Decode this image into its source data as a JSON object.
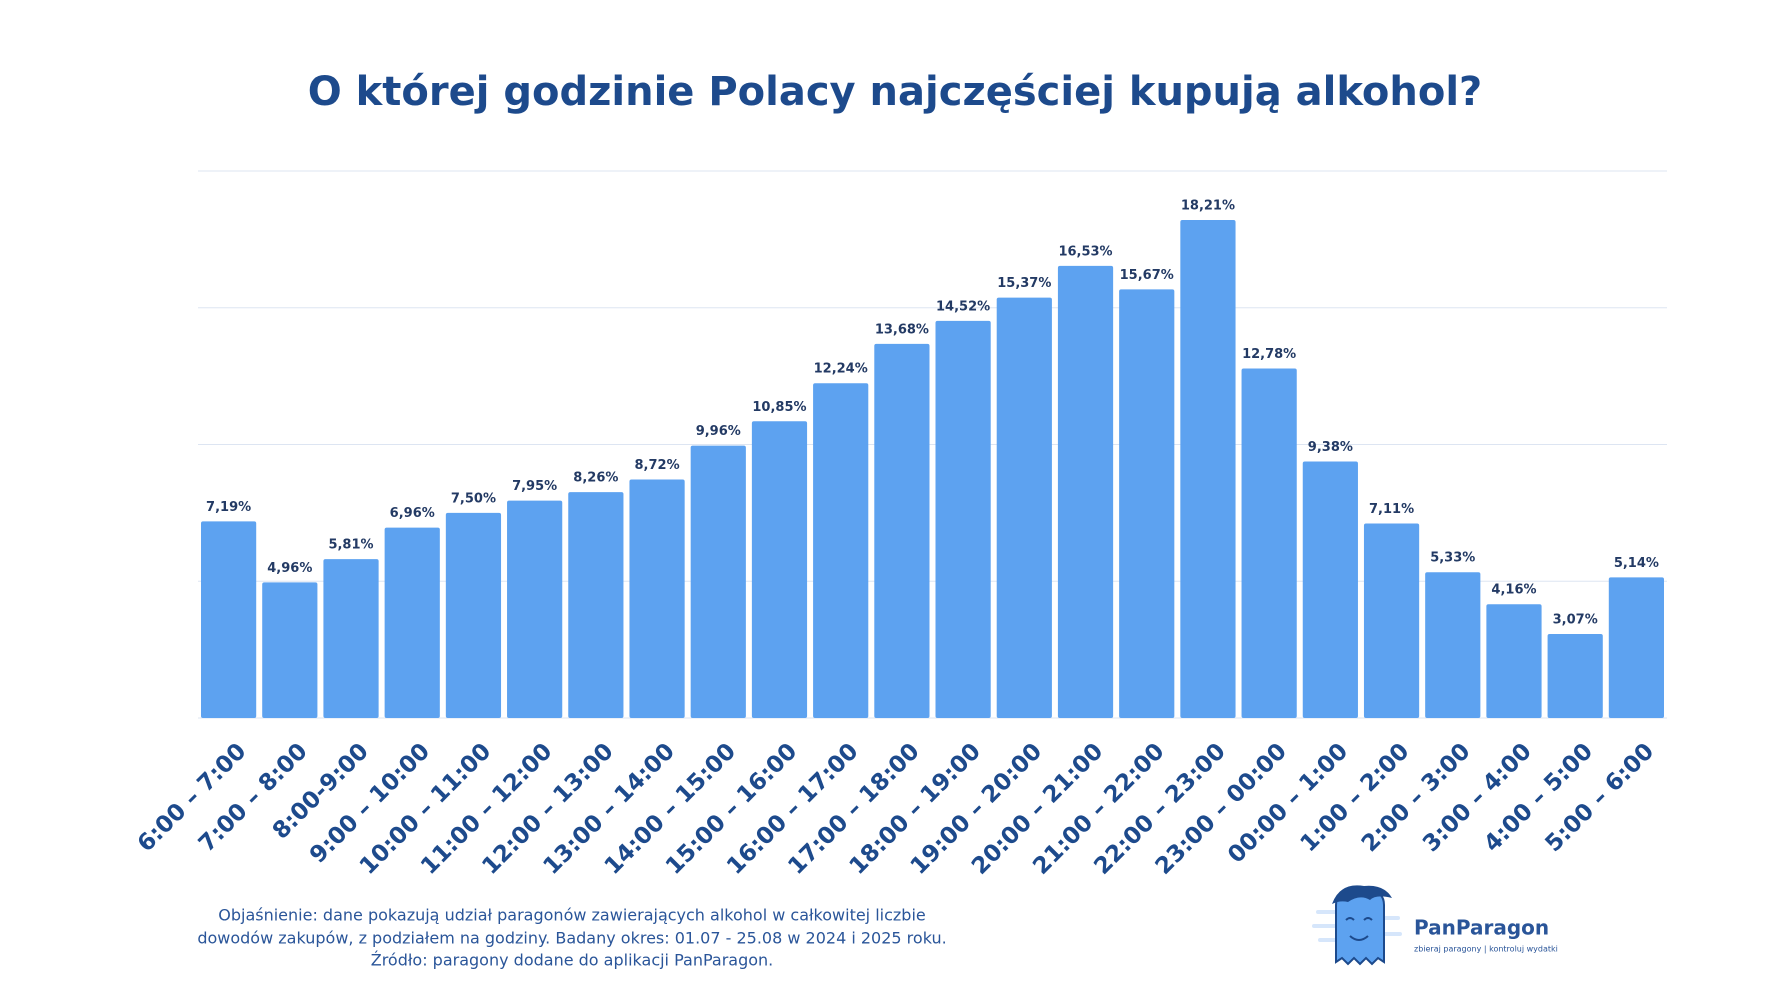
{
  "chart_data": {
    "type": "bar",
    "title": "O której godzinie Polacy najczęściej kupują alkohol?",
    "categories": [
      "6:00 – 7:00",
      "7:00 – 8:00",
      "8:00-9:00",
      "9:00 – 10:00",
      "10:00 – 11:00",
      "11:00 – 12:00",
      "12:00 – 13:00",
      "13:00 – 14:00",
      "14:00 – 15:00",
      "15:00 – 16:00",
      "16:00 – 17:00",
      "17:00 – 18:00",
      "18:00 – 19:00",
      "19:00 – 20:00",
      "20:00 – 21:00",
      "21:00 – 22:00",
      "22:00 – 23:00",
      "23:00 – 00:00",
      "00:00 – 1:00",
      "1:00 – 2:00",
      "2:00 – 3:00",
      "3:00 – 4:00",
      "4:00 – 5:00",
      "5:00 – 6:00"
    ],
    "values": [
      7.19,
      4.96,
      5.81,
      6.96,
      7.5,
      7.95,
      8.26,
      8.72,
      9.96,
      10.85,
      12.24,
      13.68,
      14.52,
      15.37,
      16.53,
      15.67,
      18.21,
      12.78,
      9.38,
      7.11,
      5.33,
      4.16,
      3.07,
      5.14
    ],
    "value_labels": [
      "7,19%",
      "4,96%",
      "5,81%",
      "6,96%",
      "7,50%",
      "7,95%",
      "8,26%",
      "8,72%",
      "9,96%",
      "10,85%",
      "12,24%",
      "13,68%",
      "14,52%",
      "15,37%",
      "16,53%",
      "15,67%",
      "18,21%",
      "12,78%",
      "9,38%",
      "7,11%",
      "5,33%",
      "4,16%",
      "3,07%",
      "5,14%"
    ],
    "color": "#5da2f0",
    "ylim": [
      0,
      20
    ],
    "yticks": [
      0,
      5,
      10,
      15,
      20
    ],
    "grid": true
  },
  "footnote": [
    "Objaśnienie: dane pokazują udział paragonów zawierających alkohol w całkowitej liczbie",
    "dowodów zakupów, z podziałem na godziny. Badany okres: 01.07 - 25.08 w 2024 i 2025 roku.",
    "Źródło: paragony dodane do aplikacji PanParagon."
  ],
  "logo": {
    "name": "PanParagon",
    "tagline": "zbieraj paragony | kontroluj wydatki"
  }
}
